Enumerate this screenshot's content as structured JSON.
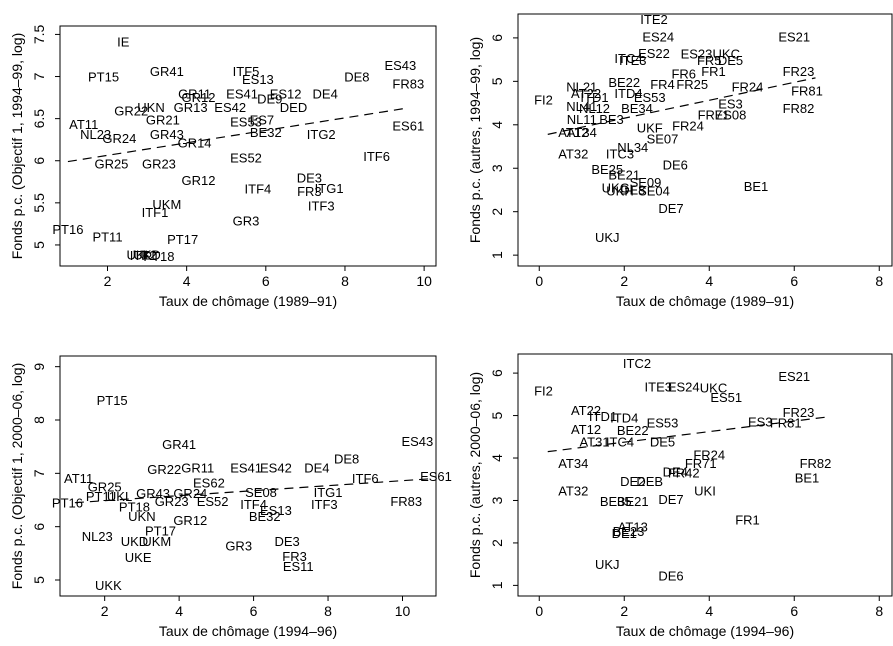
{
  "chart_data": [
    {
      "type": "scatter",
      "xlabel": "Taux de chômage (1989–91)",
      "ylabel": "Fonds p.c. (Objectif 1, 1994–99, log)",
      "xlim": [
        0.8,
        10.3
      ],
      "ylim": [
        4.75,
        7.6
      ],
      "xticks": [
        2,
        4,
        6,
        8,
        10
      ],
      "yticks": [
        5,
        5.5,
        6,
        6.5,
        7,
        7.5
      ],
      "fit_line": {
        "x": [
          1,
          9.5
        ],
        "y": [
          5.99,
          6.62
        ]
      },
      "points": [
        {
          "label": "IE",
          "x": 2.4,
          "y": 7.4
        },
        {
          "label": "PT15",
          "x": 1.9,
          "y": 6.98
        },
        {
          "label": "GR41",
          "x": 3.5,
          "y": 7.05
        },
        {
          "label": "ITF5",
          "x": 5.5,
          "y": 7.05
        },
        {
          "label": "ES13",
          "x": 5.8,
          "y": 6.95
        },
        {
          "label": "ES43",
          "x": 9.4,
          "y": 7.12
        },
        {
          "label": "DE8",
          "x": 8.3,
          "y": 6.98
        },
        {
          "label": "FR83",
          "x": 9.6,
          "y": 6.9
        },
        {
          "label": "GR11",
          "x": 4.2,
          "y": 6.78
        },
        {
          "label": "GR12",
          "x": 4.3,
          "y": 6.74
        },
        {
          "label": "ES41",
          "x": 5.4,
          "y": 6.78
        },
        {
          "label": "ES12",
          "x": 6.5,
          "y": 6.78
        },
        {
          "label": "DE4",
          "x": 7.5,
          "y": 6.78
        },
        {
          "label": "DE9",
          "x": 6.1,
          "y": 6.72
        },
        {
          "label": "DED",
          "x": 6.7,
          "y": 6.62
        },
        {
          "label": "GR22",
          "x": 2.6,
          "y": 6.58
        },
        {
          "label": "UKN",
          "x": 3.1,
          "y": 6.62
        },
        {
          "label": "GR13",
          "x": 4.1,
          "y": 6.62
        },
        {
          "label": "ES42",
          "x": 5.1,
          "y": 6.62
        },
        {
          "label": "AT11",
          "x": 1.4,
          "y": 6.42
        },
        {
          "label": "GR21",
          "x": 3.4,
          "y": 6.47
        },
        {
          "label": "ES53",
          "x": 5.5,
          "y": 6.45
        },
        {
          "label": "ES7",
          "x": 5.9,
          "y": 6.47
        },
        {
          "label": "NL23",
          "x": 1.7,
          "y": 6.3
        },
        {
          "label": "GR24",
          "x": 2.3,
          "y": 6.25
        },
        {
          "label": "GR43",
          "x": 3.5,
          "y": 6.3
        },
        {
          "label": "BE32",
          "x": 6.0,
          "y": 6.32
        },
        {
          "label": "ITG2",
          "x": 7.4,
          "y": 6.3
        },
        {
          "label": "ES61",
          "x": 9.6,
          "y": 6.4
        },
        {
          "label": "GR14",
          "x": 4.2,
          "y": 6.2
        },
        {
          "label": "GR25",
          "x": 2.1,
          "y": 5.95
        },
        {
          "label": "GR23",
          "x": 3.3,
          "y": 5.95
        },
        {
          "label": "ES52",
          "x": 5.5,
          "y": 6.02
        },
        {
          "label": "ITF6",
          "x": 8.8,
          "y": 6.04
        },
        {
          "label": "GR12",
          "x": 4.3,
          "y": 5.75
        },
        {
          "label": "DE3",
          "x": 7.1,
          "y": 5.78
        },
        {
          "label": "ITF4",
          "x": 5.8,
          "y": 5.65
        },
        {
          "label": "FR3",
          "x": 7.1,
          "y": 5.62
        },
        {
          "label": "ITG1",
          "x": 7.6,
          "y": 5.66
        },
        {
          "label": "UKM",
          "x": 3.5,
          "y": 5.47
        },
        {
          "label": "ITF3",
          "x": 7.4,
          "y": 5.45
        },
        {
          "label": "ITF1",
          "x": 3.2,
          "y": 5.37
        },
        {
          "label": "GR3",
          "x": 5.5,
          "y": 5.27
        },
        {
          "label": "PT16",
          "x": 1.0,
          "y": 5.17
        },
        {
          "label": "PT11",
          "x": 2.0,
          "y": 5.08
        },
        {
          "label": "PT17",
          "x": 3.9,
          "y": 5.05
        },
        {
          "label": "UKD",
          "x": 3.0,
          "y": 4.87
        },
        {
          "label": "ITF2",
          "x": 2.9,
          "y": 4.86
        },
        {
          "label": "UKL",
          "x": 2.8,
          "y": 4.87
        },
        {
          "label": "PT18",
          "x": 3.3,
          "y": 4.85
        }
      ]
    },
    {
      "type": "scatter",
      "xlabel": "Taux de chômage (1989–91)",
      "ylabel": "Fonds p.c. (autres, 1994–99, log)",
      "xlim": [
        -0.5,
        8.3
      ],
      "ylim": [
        0.75,
        6.55
      ],
      "xticks": [
        0,
        2,
        4,
        6,
        8
      ],
      "yticks": [
        1,
        2,
        3,
        4,
        5,
        6
      ],
      "fit_line": {
        "x": [
          0.2,
          6.5
        ],
        "y": [
          3.78,
          5.08
        ]
      },
      "points": [
        {
          "label": "ITE2",
          "x": 2.7,
          "y": 6.4
        },
        {
          "label": "ES24",
          "x": 2.8,
          "y": 6.0
        },
        {
          "label": "ES21",
          "x": 6.0,
          "y": 6.0
        },
        {
          "label": "ES22",
          "x": 2.7,
          "y": 5.62
        },
        {
          "label": "ES23",
          "x": 3.7,
          "y": 5.6
        },
        {
          "label": "UKC",
          "x": 4.4,
          "y": 5.6
        },
        {
          "label": "ITC4",
          "x": 2.1,
          "y": 5.5
        },
        {
          "label": "ITE3",
          "x": 2.2,
          "y": 5.45
        },
        {
          "label": "FR5",
          "x": 4.0,
          "y": 5.45
        },
        {
          "label": "DE5",
          "x": 4.5,
          "y": 5.45
        },
        {
          "label": "FR23",
          "x": 6.1,
          "y": 5.2
        },
        {
          "label": "FR1",
          "x": 4.1,
          "y": 5.2
        },
        {
          "label": "FR6",
          "x": 3.4,
          "y": 5.15
        },
        {
          "label": "FI2",
          "x": 0.1,
          "y": 4.55
        },
        {
          "label": "NL21",
          "x": 1.0,
          "y": 4.85
        },
        {
          "label": "BE22",
          "x": 2.0,
          "y": 4.95
        },
        {
          "label": "FR4",
          "x": 2.9,
          "y": 4.9
        },
        {
          "label": "FR25",
          "x": 3.6,
          "y": 4.9
        },
        {
          "label": "FR24",
          "x": 4.9,
          "y": 4.85
        },
        {
          "label": "FR81",
          "x": 6.3,
          "y": 4.75
        },
        {
          "label": "AT22",
          "x": 1.1,
          "y": 4.7
        },
        {
          "label": "ITD1",
          "x": 1.3,
          "y": 4.6
        },
        {
          "label": "ITD4",
          "x": 2.1,
          "y": 4.7
        },
        {
          "label": "ES53",
          "x": 2.6,
          "y": 4.6
        },
        {
          "label": "NL41",
          "x": 1.0,
          "y": 4.4
        },
        {
          "label": "NL12",
          "x": 1.3,
          "y": 4.35
        },
        {
          "label": "BE34",
          "x": 2.3,
          "y": 4.35
        },
        {
          "label": "ES3",
          "x": 4.5,
          "y": 4.45
        },
        {
          "label": "FR82",
          "x": 6.1,
          "y": 4.35
        },
        {
          "label": "NL11",
          "x": 1.0,
          "y": 4.1
        },
        {
          "label": "BE3",
          "x": 1.7,
          "y": 4.1
        },
        {
          "label": "FR71",
          "x": 4.1,
          "y": 4.2
        },
        {
          "label": "ES08",
          "x": 4.5,
          "y": 4.2
        },
        {
          "label": "AT12",
          "x": 0.8,
          "y": 3.8
        },
        {
          "label": "AT34",
          "x": 1.0,
          "y": 3.8
        },
        {
          "label": "UKF",
          "x": 2.6,
          "y": 3.9
        },
        {
          "label": "FR24",
          "x": 3.5,
          "y": 3.95
        },
        {
          "label": "SE07",
          "x": 2.9,
          "y": 3.65
        },
        {
          "label": "NL34",
          "x": 2.2,
          "y": 3.45
        },
        {
          "label": "AT32",
          "x": 0.8,
          "y": 3.3
        },
        {
          "label": "ITC3",
          "x": 1.9,
          "y": 3.3
        },
        {
          "label": "DE6",
          "x": 3.2,
          "y": 3.05
        },
        {
          "label": "BE25",
          "x": 1.6,
          "y": 2.95
        },
        {
          "label": "BE21",
          "x": 2.0,
          "y": 2.82
        },
        {
          "label": "SE09",
          "x": 2.5,
          "y": 2.65
        },
        {
          "label": "BE1",
          "x": 5.1,
          "y": 2.55
        },
        {
          "label": "UKG",
          "x": 1.8,
          "y": 2.52
        },
        {
          "label": "DE8",
          "x": 2.2,
          "y": 2.48
        },
        {
          "label": "SE04",
          "x": 2.7,
          "y": 2.45
        },
        {
          "label": "UKH",
          "x": 1.9,
          "y": 2.45
        },
        {
          "label": "DE7",
          "x": 3.1,
          "y": 2.05
        },
        {
          "label": "UKJ",
          "x": 1.6,
          "y": 1.38
        }
      ]
    },
    {
      "type": "scatter",
      "xlabel": "Taux de chômage (1994–96)",
      "ylabel": "Fonds p.c. (Objectif 1, 2000–06, log)",
      "xlim": [
        0.8,
        10.9
      ],
      "ylim": [
        4.7,
        9.2
      ],
      "xticks": [
        2,
        4,
        6,
        8,
        10
      ],
      "yticks": [
        5,
        6,
        7,
        8,
        9
      ],
      "fit_line": {
        "x": [
          1.2,
          10.8
        ],
        "y": [
          6.45,
          6.9
        ]
      },
      "points": [
        {
          "label": "PT15",
          "x": 2.2,
          "y": 8.35
        },
        {
          "label": "GR41",
          "x": 4.0,
          "y": 7.52
        },
        {
          "label": "ES43",
          "x": 10.4,
          "y": 7.58
        },
        {
          "label": "DE8",
          "x": 8.5,
          "y": 7.25
        },
        {
          "label": "GR22",
          "x": 3.6,
          "y": 7.05
        },
        {
          "label": "GR11",
          "x": 4.5,
          "y": 7.08
        },
        {
          "label": "ES41",
          "x": 5.8,
          "y": 7.08
        },
        {
          "label": "ES42",
          "x": 6.6,
          "y": 7.08
        },
        {
          "label": "DE4",
          "x": 7.7,
          "y": 7.08
        },
        {
          "label": "ES62",
          "x": 4.8,
          "y": 6.8
        },
        {
          "label": "ITF6",
          "x": 9.0,
          "y": 6.88
        },
        {
          "label": "ES61",
          "x": 10.9,
          "y": 6.92
        },
        {
          "label": "AT11",
          "x": 1.3,
          "y": 6.88
        },
        {
          "label": "GR25",
          "x": 2.0,
          "y": 6.72
        },
        {
          "label": "SE08",
          "x": 6.2,
          "y": 6.62
        },
        {
          "label": "ITG1",
          "x": 8.0,
          "y": 6.62
        },
        {
          "label": "PT16",
          "x": 1.0,
          "y": 6.42
        },
        {
          "label": "PT11",
          "x": 1.9,
          "y": 6.55
        },
        {
          "label": "UKL",
          "x": 2.4,
          "y": 6.55
        },
        {
          "label": "GR43",
          "x": 3.3,
          "y": 6.6
        },
        {
          "label": "GR24",
          "x": 4.3,
          "y": 6.6
        },
        {
          "label": "FR83",
          "x": 10.1,
          "y": 6.45
        },
        {
          "label": "ITF3",
          "x": 7.9,
          "y": 6.4
        },
        {
          "label": "ITF4",
          "x": 6.0,
          "y": 6.4
        },
        {
          "label": "PT18",
          "x": 2.8,
          "y": 6.35
        },
        {
          "label": "GR23",
          "x": 3.8,
          "y": 6.45
        },
        {
          "label": "ES52",
          "x": 4.9,
          "y": 6.45
        },
        {
          "label": "UKN",
          "x": 3.0,
          "y": 6.17
        },
        {
          "label": "GR12",
          "x": 4.3,
          "y": 6.1
        },
        {
          "label": "BE32",
          "x": 6.3,
          "y": 6.17
        },
        {
          "label": "ES13",
          "x": 6.6,
          "y": 6.28
        },
        {
          "label": "PT17",
          "x": 3.5,
          "y": 5.9
        },
        {
          "label": "NL23",
          "x": 1.8,
          "y": 5.8
        },
        {
          "label": "UKD",
          "x": 2.8,
          "y": 5.7
        },
        {
          "label": "UKM",
          "x": 3.4,
          "y": 5.7
        },
        {
          "label": "GR3",
          "x": 5.6,
          "y": 5.62
        },
        {
          "label": "DE3",
          "x": 6.9,
          "y": 5.7
        },
        {
          "label": "UKE",
          "x": 2.9,
          "y": 5.4
        },
        {
          "label": "FR3",
          "x": 7.1,
          "y": 5.42
        },
        {
          "label": "ES11",
          "x": 7.2,
          "y": 5.23
        },
        {
          "label": "UKK",
          "x": 2.1,
          "y": 4.88
        }
      ]
    },
    {
      "type": "scatter",
      "xlabel": "Taux de chômage (1994–96)",
      "ylabel": "Fonds p.c. (autres, 2000–06, log)",
      "xlim": [
        -0.5,
        8.3
      ],
      "ylim": [
        0.75,
        6.45
      ],
      "xticks": [
        0,
        2,
        4,
        6,
        8
      ],
      "yticks": [
        1,
        2,
        3,
        4,
        5,
        6
      ],
      "fit_line": {
        "x": [
          0.2,
          6.8
        ],
        "y": [
          4.15,
          4.97
        ]
      },
      "points": [
        {
          "label": "ITC2",
          "x": 2.3,
          "y": 6.2
        },
        {
          "label": "ES21",
          "x": 6.0,
          "y": 5.9
        },
        {
          "label": "FI2",
          "x": 0.1,
          "y": 5.55
        },
        {
          "label": "ITE3",
          "x": 2.8,
          "y": 5.65
        },
        {
          "label": "ES24",
          "x": 3.4,
          "y": 5.65
        },
        {
          "label": "UKC",
          "x": 4.1,
          "y": 5.62
        },
        {
          "label": "FR23",
          "x": 6.1,
          "y": 5.05
        },
        {
          "label": "ES51",
          "x": 4.4,
          "y": 5.4
        },
        {
          "label": "AT22",
          "x": 1.1,
          "y": 5.1
        },
        {
          "label": "ITD1",
          "x": 1.5,
          "y": 4.95
        },
        {
          "label": "ITD4",
          "x": 2.0,
          "y": 4.92
        },
        {
          "label": "ES53",
          "x": 2.9,
          "y": 4.8
        },
        {
          "label": "FR81",
          "x": 5.8,
          "y": 4.8
        },
        {
          "label": "ES3",
          "x": 5.2,
          "y": 4.82
        },
        {
          "label": "AT12",
          "x": 1.1,
          "y": 4.65
        },
        {
          "label": "BE22",
          "x": 2.2,
          "y": 4.62
        },
        {
          "label": "AT31",
          "x": 1.3,
          "y": 4.35
        },
        {
          "label": "ITC4",
          "x": 1.9,
          "y": 4.35
        },
        {
          "label": "DE5",
          "x": 2.9,
          "y": 4.35
        },
        {
          "label": "FR24",
          "x": 4.0,
          "y": 4.05
        },
        {
          "label": "FR82",
          "x": 6.5,
          "y": 3.85
        },
        {
          "label": "AT34",
          "x": 0.8,
          "y": 3.85
        },
        {
          "label": "FR71",
          "x": 3.8,
          "y": 3.85
        },
        {
          "label": "DE4",
          "x": 3.2,
          "y": 3.65
        },
        {
          "label": "FR42",
          "x": 3.4,
          "y": 3.62
        },
        {
          "label": "DE2",
          "x": 2.2,
          "y": 3.42
        },
        {
          "label": "DEB",
          "x": 2.6,
          "y": 3.42
        },
        {
          "label": "UKI",
          "x": 3.9,
          "y": 3.2
        },
        {
          "label": "BE1",
          "x": 6.3,
          "y": 3.5
        },
        {
          "label": "AT32",
          "x": 0.8,
          "y": 3.2
        },
        {
          "label": "DE7",
          "x": 3.1,
          "y": 3.0
        },
        {
          "label": "BE35",
          "x": 1.8,
          "y": 2.95
        },
        {
          "label": "BE21",
          "x": 2.2,
          "y": 2.95
        },
        {
          "label": "FR1",
          "x": 4.9,
          "y": 2.52
        },
        {
          "label": "AT13",
          "x": 2.2,
          "y": 2.35
        },
        {
          "label": "BE23",
          "x": 2.1,
          "y": 2.25
        },
        {
          "label": "DE1",
          "x": 2.0,
          "y": 2.2
        },
        {
          "label": "UKJ",
          "x": 1.6,
          "y": 1.47
        },
        {
          "label": "DE6",
          "x": 3.1,
          "y": 1.2
        }
      ]
    }
  ]
}
